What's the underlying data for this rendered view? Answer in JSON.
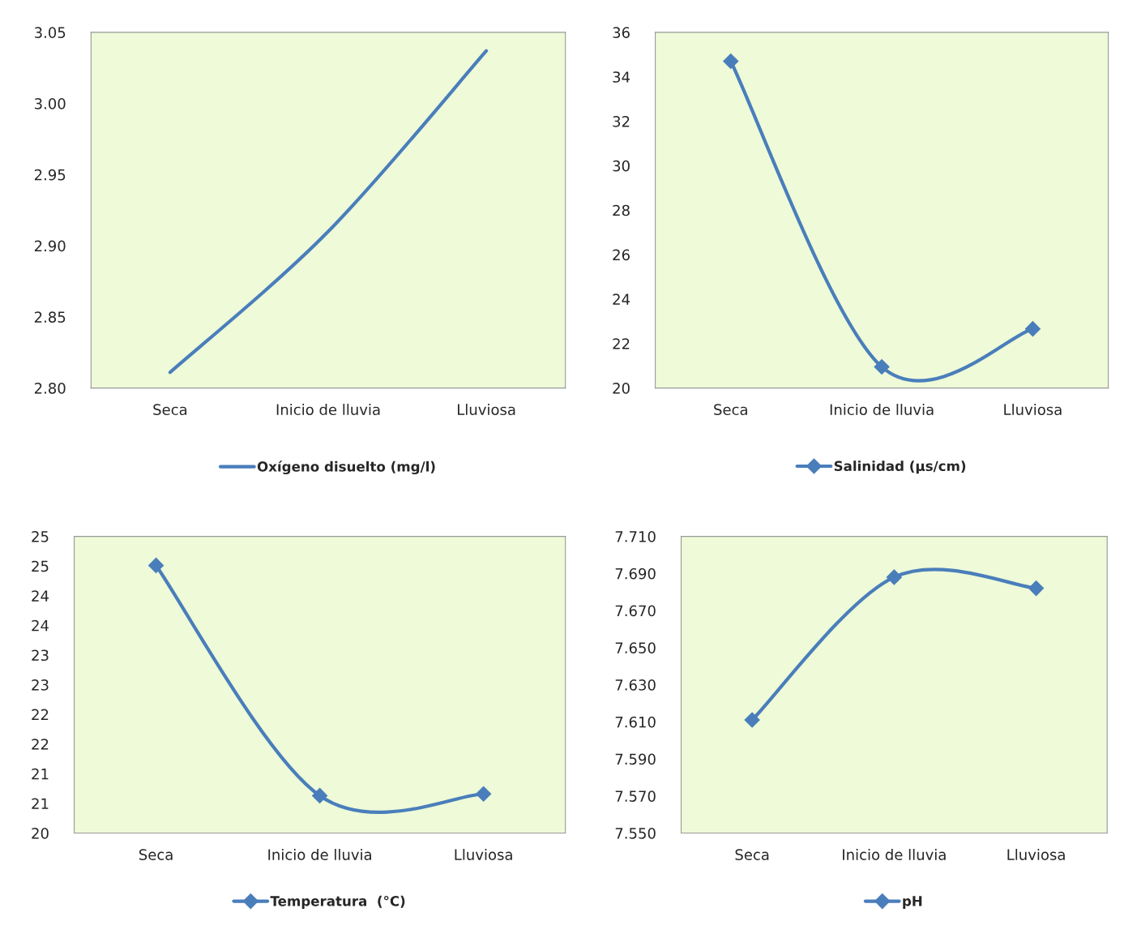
{
  "chart_data": [
    {
      "type": "line",
      "categories": [
        "Seca",
        "Inicio de lluvia",
        "Lluviosa"
      ],
      "series": [
        {
          "name": "Oxígeno disuelto (mg/l)",
          "color": "#4a7ebb",
          "values": [
            2.811,
            2.91,
            3.037
          ]
        }
      ],
      "ylim": [
        2.8,
        3.05
      ],
      "yticks": [
        {
          "value": 2.8,
          "label": "2.80"
        },
        {
          "value": 2.85,
          "label": "2.85"
        },
        {
          "value": 2.9,
          "label": "2.90"
        },
        {
          "value": 2.95,
          "label": "2.95"
        },
        {
          "value": 3.0,
          "label": "3.00"
        },
        {
          "value": 3.05,
          "label": "3.05"
        }
      ],
      "marker": "none",
      "legend": "bottom",
      "grid": false
    },
    {
      "type": "line",
      "categories": [
        "Seca",
        "Inicio de lluvia",
        "Lluviosa"
      ],
      "series": [
        {
          "name": "Salinidad (µs/cm)",
          "color": "#4a7ebb",
          "values": [
            34.7,
            20.95,
            22.66
          ]
        }
      ],
      "ylim": [
        20,
        36
      ],
      "yticks": [
        20,
        22,
        24,
        26,
        28,
        30,
        32,
        34,
        36
      ],
      "marker": "diamond",
      "legend": "bottom",
      "grid": false
    },
    {
      "type": "line",
      "categories": [
        "Seca",
        "Inicio de lluvia",
        "Lluviosa"
      ],
      "series": [
        {
          "name": "Temperatura  (°C)",
          "color": "#4a7ebb",
          "values": [
            24.51,
            20.63,
            20.66
          ]
        }
      ],
      "ylim": [
        20,
        25
      ],
      "yticks": [
        {
          "value": 20,
          "label": "20"
        },
        {
          "value": 20.5,
          "label": "21"
        },
        {
          "value": 21,
          "label": "21"
        },
        {
          "value": 21.5,
          "label": "22"
        },
        {
          "value": 22,
          "label": "22"
        },
        {
          "value": 22.5,
          "label": "23"
        },
        {
          "value": 23,
          "label": "23"
        },
        {
          "value": 23.5,
          "label": "24"
        },
        {
          "value": 24,
          "label": "24"
        },
        {
          "value": 24.5,
          "label": "25"
        },
        {
          "value": 25,
          "label": "25"
        }
      ],
      "marker": "diamond",
      "legend": "bottom",
      "grid": false
    },
    {
      "type": "line",
      "categories": [
        "Seca",
        "Inicio de lluvia",
        "Lluviosa"
      ],
      "series": [
        {
          "name": "pH",
          "color": "#4a7ebb",
          "values": [
            7.611,
            7.688,
            7.682
          ]
        }
      ],
      "ylim": [
        7.55,
        7.71
      ],
      "yticks": [
        {
          "value": 7.55,
          "label": "7.550"
        },
        {
          "value": 7.57,
          "label": "7.570"
        },
        {
          "value": 7.59,
          "label": "7.590"
        },
        {
          "value": 7.61,
          "label": "7.610"
        },
        {
          "value": 7.63,
          "label": "7.630"
        },
        {
          "value": 7.65,
          "label": "7.650"
        },
        {
          "value": 7.67,
          "label": "7.670"
        },
        {
          "value": 7.69,
          "label": "7.690"
        },
        {
          "value": 7.71,
          "label": "7.710"
        }
      ],
      "marker": "diamond",
      "legend": "bottom",
      "grid": false
    }
  ]
}
